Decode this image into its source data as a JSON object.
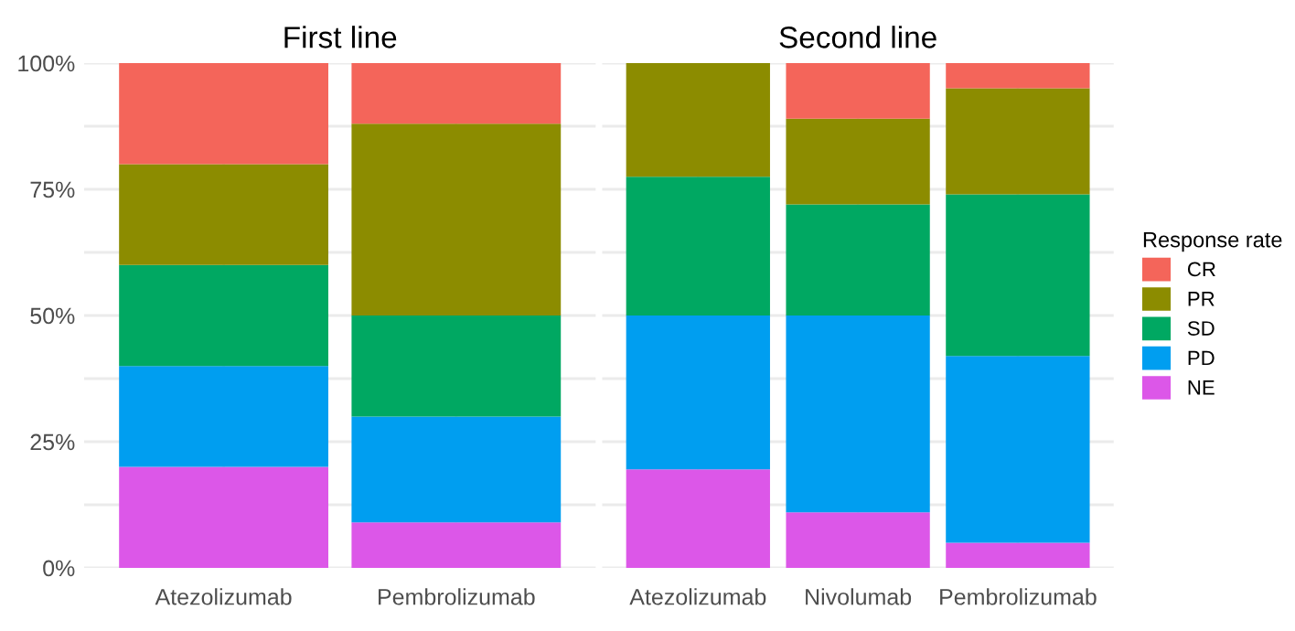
{
  "chart_data": [
    {
      "type": "bar",
      "title": "First line",
      "stacked": true,
      "categories": [
        "Atezolizumab",
        "Pembrolizumab"
      ],
      "ylim": [
        0,
        100
      ],
      "yticks": [
        {
          "value": 0,
          "label": "0%"
        },
        {
          "value": 12.5,
          "label": null
        },
        {
          "value": 25,
          "label": "25%"
        },
        {
          "value": 37.5,
          "label": null
        },
        {
          "value": 50,
          "label": "50%"
        },
        {
          "value": 62.5,
          "label": null
        },
        {
          "value": 75,
          "label": "75%"
        },
        {
          "value": 87.5,
          "label": null
        },
        {
          "value": 100,
          "label": "100%"
        }
      ],
      "grid": true,
      "series": [
        {
          "color": "#dc57e8",
          "values": [
            20,
            9
          ]
        },
        {
          "color": "#009ef0",
          "values": [
            20,
            21
          ]
        },
        {
          "color": "#00a862",
          "values": [
            20,
            20
          ]
        },
        {
          "color": "#8c8c00",
          "values": [
            20,
            38
          ]
        },
        {
          "color": "#f4655a",
          "values": [
            20,
            12
          ]
        }
      ]
    },
    {
      "type": "bar",
      "title": "Second line",
      "stacked": true,
      "categories": [
        "Atezolizumab",
        "Nivolumab",
        "Pembrolizumab"
      ],
      "ylim": [
        0,
        100
      ],
      "yticks": [
        {
          "value": 0,
          "label": null
        },
        {
          "value": 12.5,
          "label": null
        },
        {
          "value": 25,
          "label": null
        },
        {
          "value": 37.5,
          "label": null
        },
        {
          "value": 50,
          "label": null
        },
        {
          "value": 62.5,
          "label": null
        },
        {
          "value": 75,
          "label": null
        },
        {
          "value": 87.5,
          "label": null
        },
        {
          "value": 100,
          "label": null
        }
      ],
      "tick_labels": "x",
      "grid": true,
      "legend": "right",
      "legend_title": "Response rate",
      "series": [
        {
          "name": "NE",
          "color": "#dc57e8",
          "values": [
            19.5,
            11,
            5
          ]
        },
        {
          "name": "PD",
          "color": "#009ef0",
          "values": [
            30.5,
            39,
            37
          ]
        },
        {
          "name": "SD",
          "color": "#00a862",
          "values": [
            27.5,
            22,
            32
          ]
        },
        {
          "name": "PR",
          "color": "#8c8c00",
          "values": [
            22.5,
            17,
            21
          ]
        },
        {
          "name": "CR",
          "color": "#f4655a",
          "values": [
            0,
            11,
            5
          ]
        }
      ]
    }
  ]
}
